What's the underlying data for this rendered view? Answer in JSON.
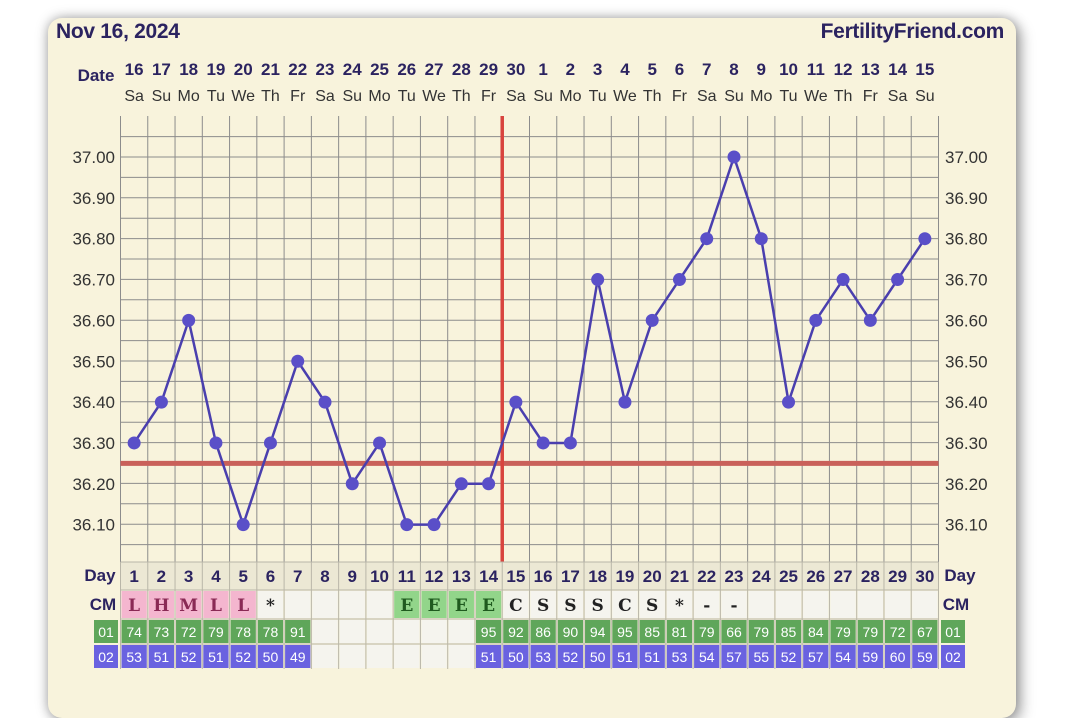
{
  "header": {
    "date": "Nov 16, 2024",
    "site": "FertilityFriend.com"
  },
  "labels": {
    "date_row": "Date",
    "day_row": "Day",
    "cm_row": "CM"
  },
  "colors": {
    "background": "#f8f3dc",
    "grid": "#8c8c8c",
    "line": "#4a3fae",
    "point": "#5a4fc8",
    "coverline": "#c9615a",
    "ovulation_line": "#d8443e",
    "text": "#2b2360",
    "menses_cell": "#f4b6cf",
    "egg_white_cell": "#92d58a",
    "row01_cell": "#5fa65a",
    "row02_cell": "#6a62e0"
  },
  "chart_data": {
    "type": "line",
    "title": "",
    "xlabel": "Day",
    "ylabel": "",
    "ylim": [
      36.0,
      37.1
    ],
    "yticks": [
      "37.00",
      "36.90",
      "36.80",
      "36.70",
      "36.60",
      "36.50",
      "36.40",
      "36.30",
      "36.20",
      "36.10"
    ],
    "grid": true,
    "dates": [
      "16",
      "17",
      "18",
      "19",
      "20",
      "21",
      "22",
      "23",
      "24",
      "25",
      "26",
      "27",
      "28",
      "29",
      "30",
      "1",
      "2",
      "3",
      "4",
      "5",
      "6",
      "7",
      "8",
      "9",
      "10",
      "11",
      "12",
      "13",
      "14",
      "15"
    ],
    "weekdays": [
      "Sa",
      "Su",
      "Mo",
      "Tu",
      "We",
      "Th",
      "Fr",
      "Sa",
      "Su",
      "Mo",
      "Tu",
      "We",
      "Th",
      "Fr",
      "Sa",
      "Su",
      "Mo",
      "Tu",
      "We",
      "Th",
      "Fr",
      "Sa",
      "Su",
      "Mo",
      "Tu",
      "We",
      "Th",
      "Fr",
      "Sa",
      "Su"
    ],
    "days": [
      "1",
      "2",
      "3",
      "4",
      "5",
      "6",
      "7",
      "8",
      "9",
      "10",
      "11",
      "12",
      "13",
      "14",
      "15",
      "16",
      "17",
      "18",
      "19",
      "20",
      "21",
      "22",
      "23",
      "24",
      "25",
      "26",
      "27",
      "28",
      "29",
      "30"
    ],
    "series": [
      {
        "values": [
          36.3,
          36.4,
          36.6,
          36.3,
          36.1,
          36.3,
          36.5,
          36.4,
          36.2,
          36.3,
          36.1,
          36.1,
          36.2,
          36.2,
          36.4,
          36.3,
          36.3,
          36.7,
          36.4,
          36.6,
          36.7,
          36.8,
          37.0,
          36.8,
          36.4,
          36.6,
          36.7,
          36.6,
          36.7,
          36.8
        ]
      }
    ],
    "coverline": 36.25,
    "ovulation_day": 14,
    "cm": [
      "L",
      "H",
      "M",
      "L",
      "L",
      "*",
      "",
      "",
      "",
      "",
      "E",
      "E",
      "E",
      "E",
      "C",
      "S",
      "S",
      "S",
      "C",
      "S",
      "*",
      "-",
      "-",
      "",
      "",
      "",
      "",
      "",
      "",
      ""
    ],
    "row01": {
      "label": "01",
      "values": [
        "74",
        "73",
        "72",
        "79",
        "78",
        "78",
        "91",
        "",
        "",
        "",
        "",
        "",
        "",
        "95",
        "92",
        "86",
        "90",
        "94",
        "95",
        "85",
        "81",
        "79",
        "66",
        "79",
        "85",
        "84",
        "79",
        "79",
        "72",
        "67"
      ]
    },
    "row02": {
      "label": "02",
      "values": [
        "53",
        "51",
        "52",
        "51",
        "52",
        "50",
        "49",
        "",
        "",
        "",
        "",
        "",
        "",
        "51",
        "50",
        "53",
        "52",
        "50",
        "51",
        "51",
        "53",
        "54",
        "57",
        "55",
        "52",
        "57",
        "54",
        "59",
        "60",
        "59"
      ]
    }
  }
}
